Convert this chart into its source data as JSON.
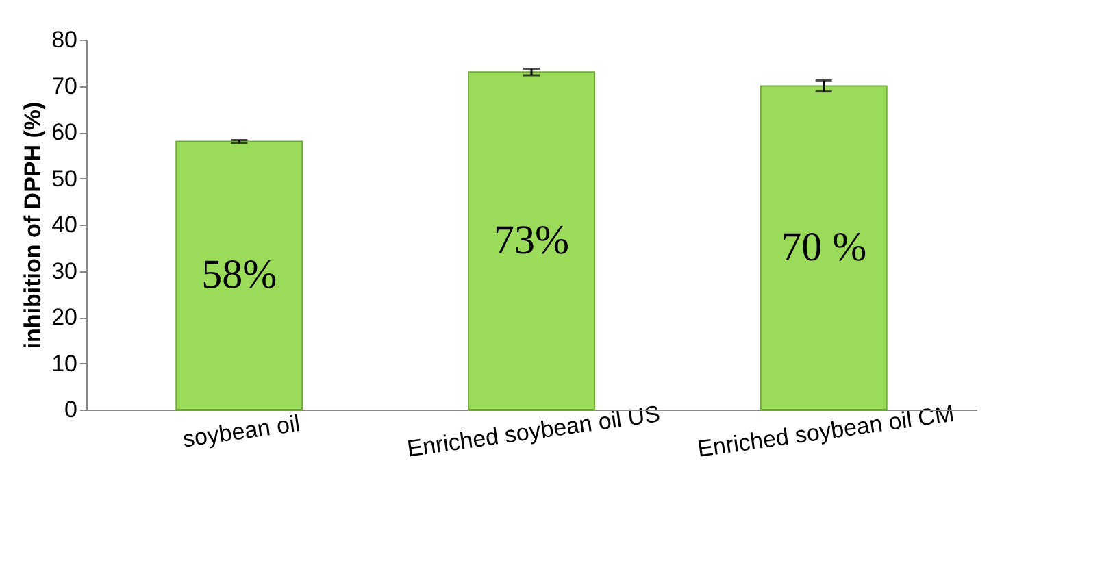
{
  "chart_data": {
    "type": "bar",
    "ylabel": "inhibition of DPPH (%)",
    "categories": [
      "soybean oil",
      "Enriched soybean oil US",
      "Enriched soybean oil CM"
    ],
    "values": [
      58,
      73,
      70
    ],
    "errors": [
      0.3,
      0.7,
      1.2
    ],
    "value_labels": [
      "58%",
      "73%",
      "70 %"
    ],
    "color": "#9bdb5a",
    "ylim": [
      0,
      80
    ],
    "yticks": [
      0,
      10,
      20,
      30,
      40,
      50,
      60,
      70,
      80
    ],
    "grid": false
  }
}
